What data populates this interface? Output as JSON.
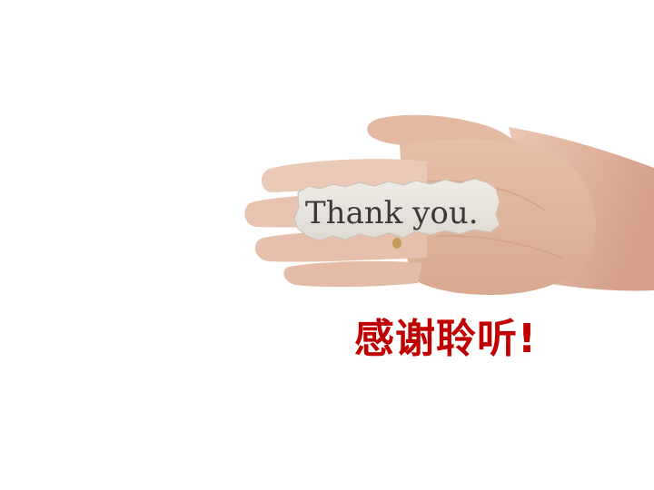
{
  "slide": {
    "closing_text": "感谢聆听!",
    "text_color": "#c00000",
    "background": "#ffffff"
  },
  "photo": {
    "note_text": "Thank you.",
    "icon": "hand-holding-note-photo"
  }
}
